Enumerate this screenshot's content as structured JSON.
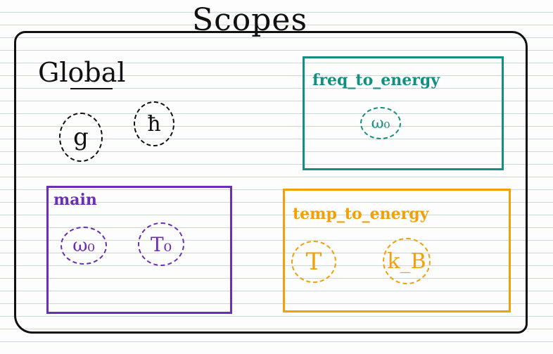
{
  "title": "Scopes",
  "global": {
    "label": "Global",
    "vars": [
      "g",
      "ħ"
    ]
  },
  "scopes": {
    "freq_to_energy": {
      "label": "freq_to_energy",
      "color": "#138f7f",
      "vars": [
        "ω₀"
      ]
    },
    "main": {
      "label": "main",
      "color": "#6a2fb5",
      "vars": [
        "ω₀",
        "T₀"
      ]
    },
    "temp_to_energy": {
      "label": "temp_to_energy",
      "color": "#f2a00a",
      "vars": [
        "T",
        "k_B"
      ]
    }
  }
}
